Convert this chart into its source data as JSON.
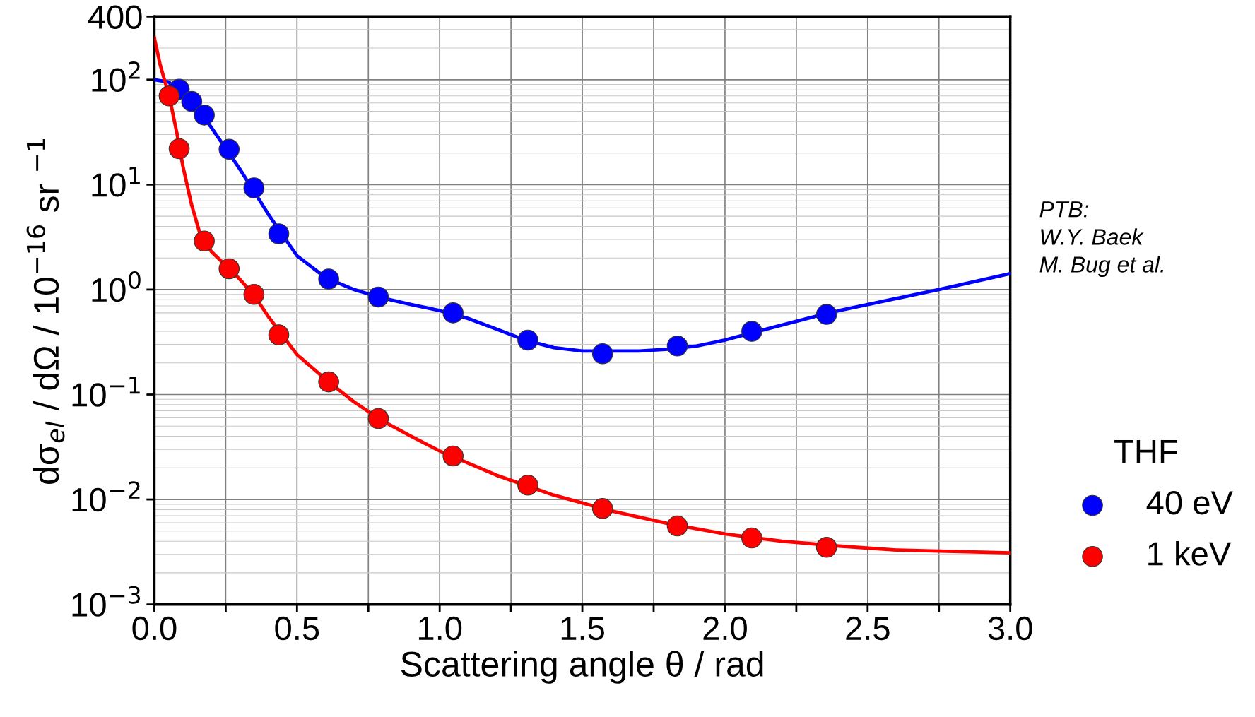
{
  "chart_data": {
    "type": "scatter",
    "xlabel": "Scattering angle θ / rad",
    "ylabel": "dσ$_{el}$ / dΩ / 10$^{−16}$ sr $^{−1}$",
    "legend_title": "THF",
    "legend": "right",
    "log": "y",
    "grid": true,
    "marker": "circle",
    "xlim": [
      0,
      3
    ],
    "xticks": [
      {
        "value": 0,
        "label": "0.0"
      },
      {
        "value": 0.25,
        "label": null
      },
      {
        "value": 0.5,
        "label": "0.5"
      },
      {
        "value": 0.75,
        "label": null
      },
      {
        "value": 1,
        "label": "1.0"
      },
      {
        "value": 1.25,
        "label": null
      },
      {
        "value": 1.5,
        "label": "1.5"
      },
      {
        "value": 1.75,
        "label": null
      },
      {
        "value": 2,
        "label": "2.0"
      },
      {
        "value": 2.25,
        "label": null
      },
      {
        "value": 2.5,
        "label": "2.5"
      },
      {
        "value": 2.75,
        "label": null
      },
      {
        "value": 3,
        "label": "3.0"
      }
    ],
    "ylim": [
      0.001,
      400
    ],
    "yticks": [
      {
        "value": 0.001,
        "label": "10$^{−3}$"
      },
      {
        "value": 0.01,
        "label": "10$^{−2}$"
      },
      {
        "value": 0.1,
        "label": "10$^{−1}$"
      },
      {
        "value": 1,
        "label": "10$^{0}$"
      },
      {
        "value": 10,
        "label": "10$^{1}$"
      },
      {
        "value": 100,
        "label": "10$^{2}$"
      },
      {
        "value": 400,
        "label": "400"
      }
    ],
    "annotations": [
      "PTB:\nW.Y. Baek\nM. Bug et al."
    ],
    "series": [
      {
        "type": "line",
        "marker": "none",
        "color": "#0000ff",
        "x": [
          0,
          0.05,
          0.1,
          0.15,
          0.2,
          0.3,
          0.4,
          0.5,
          0.6,
          0.7,
          0.8,
          0.9,
          1.0,
          1.1,
          1.2,
          1.3,
          1.4,
          1.5,
          1.6,
          1.7,
          1.8,
          1.9,
          2.0,
          2.1,
          2.2,
          2.3,
          2.4,
          2.5,
          2.75,
          3.0
        ],
        "values": [
          100,
          95,
          72,
          53,
          35,
          14,
          5.2,
          2.1,
          1.3,
          1.0,
          0.83,
          0.72,
          0.63,
          0.53,
          0.42,
          0.33,
          0.28,
          0.26,
          0.26,
          0.26,
          0.27,
          0.29,
          0.33,
          0.39,
          0.46,
          0.54,
          0.63,
          0.72,
          1.0,
          1.42
        ]
      },
      {
        "type": "line",
        "marker": "none",
        "color": "#ff0000",
        "x": [
          0,
          0.02,
          0.04,
          0.06,
          0.08,
          0.1,
          0.13,
          0.16,
          0.2,
          0.25,
          0.3,
          0.35,
          0.4,
          0.5,
          0.6,
          0.7,
          0.8,
          0.9,
          1.0,
          1.2,
          1.4,
          1.6,
          1.8,
          2.0,
          2.2,
          2.4,
          2.6,
          2.8,
          3.0
        ],
        "values": [
          250,
          140,
          90,
          55,
          30,
          15,
          6.5,
          3.4,
          2.3,
          1.7,
          1.25,
          0.88,
          0.55,
          0.24,
          0.14,
          0.085,
          0.056,
          0.04,
          0.029,
          0.017,
          0.011,
          0.0078,
          0.0059,
          0.0047,
          0.004,
          0.0036,
          0.0033,
          0.0032,
          0.0031
        ]
      },
      {
        "name": "40 eV",
        "color": "#0000ff",
        "x": [
          0.087,
          0.131,
          0.175,
          0.262,
          0.349,
          0.436,
          0.611,
          0.785,
          1.047,
          1.309,
          1.571,
          1.833,
          2.094,
          2.356
        ],
        "values": [
          81,
          62,
          46,
          21.7,
          9.3,
          3.4,
          1.26,
          0.85,
          0.6,
          0.33,
          0.245,
          0.29,
          0.4,
          0.58
        ]
      },
      {
        "name": "1 keV",
        "color": "#ff0000",
        "x": [
          0.052,
          0.087,
          0.175,
          0.262,
          0.349,
          0.436,
          0.611,
          0.785,
          1.047,
          1.309,
          1.571,
          1.833,
          2.094,
          2.356
        ],
        "values": [
          70,
          22,
          2.9,
          1.58,
          0.9,
          0.37,
          0.132,
          0.059,
          0.026,
          0.0137,
          0.0082,
          0.0056,
          0.0043,
          0.0035
        ]
      }
    ]
  }
}
